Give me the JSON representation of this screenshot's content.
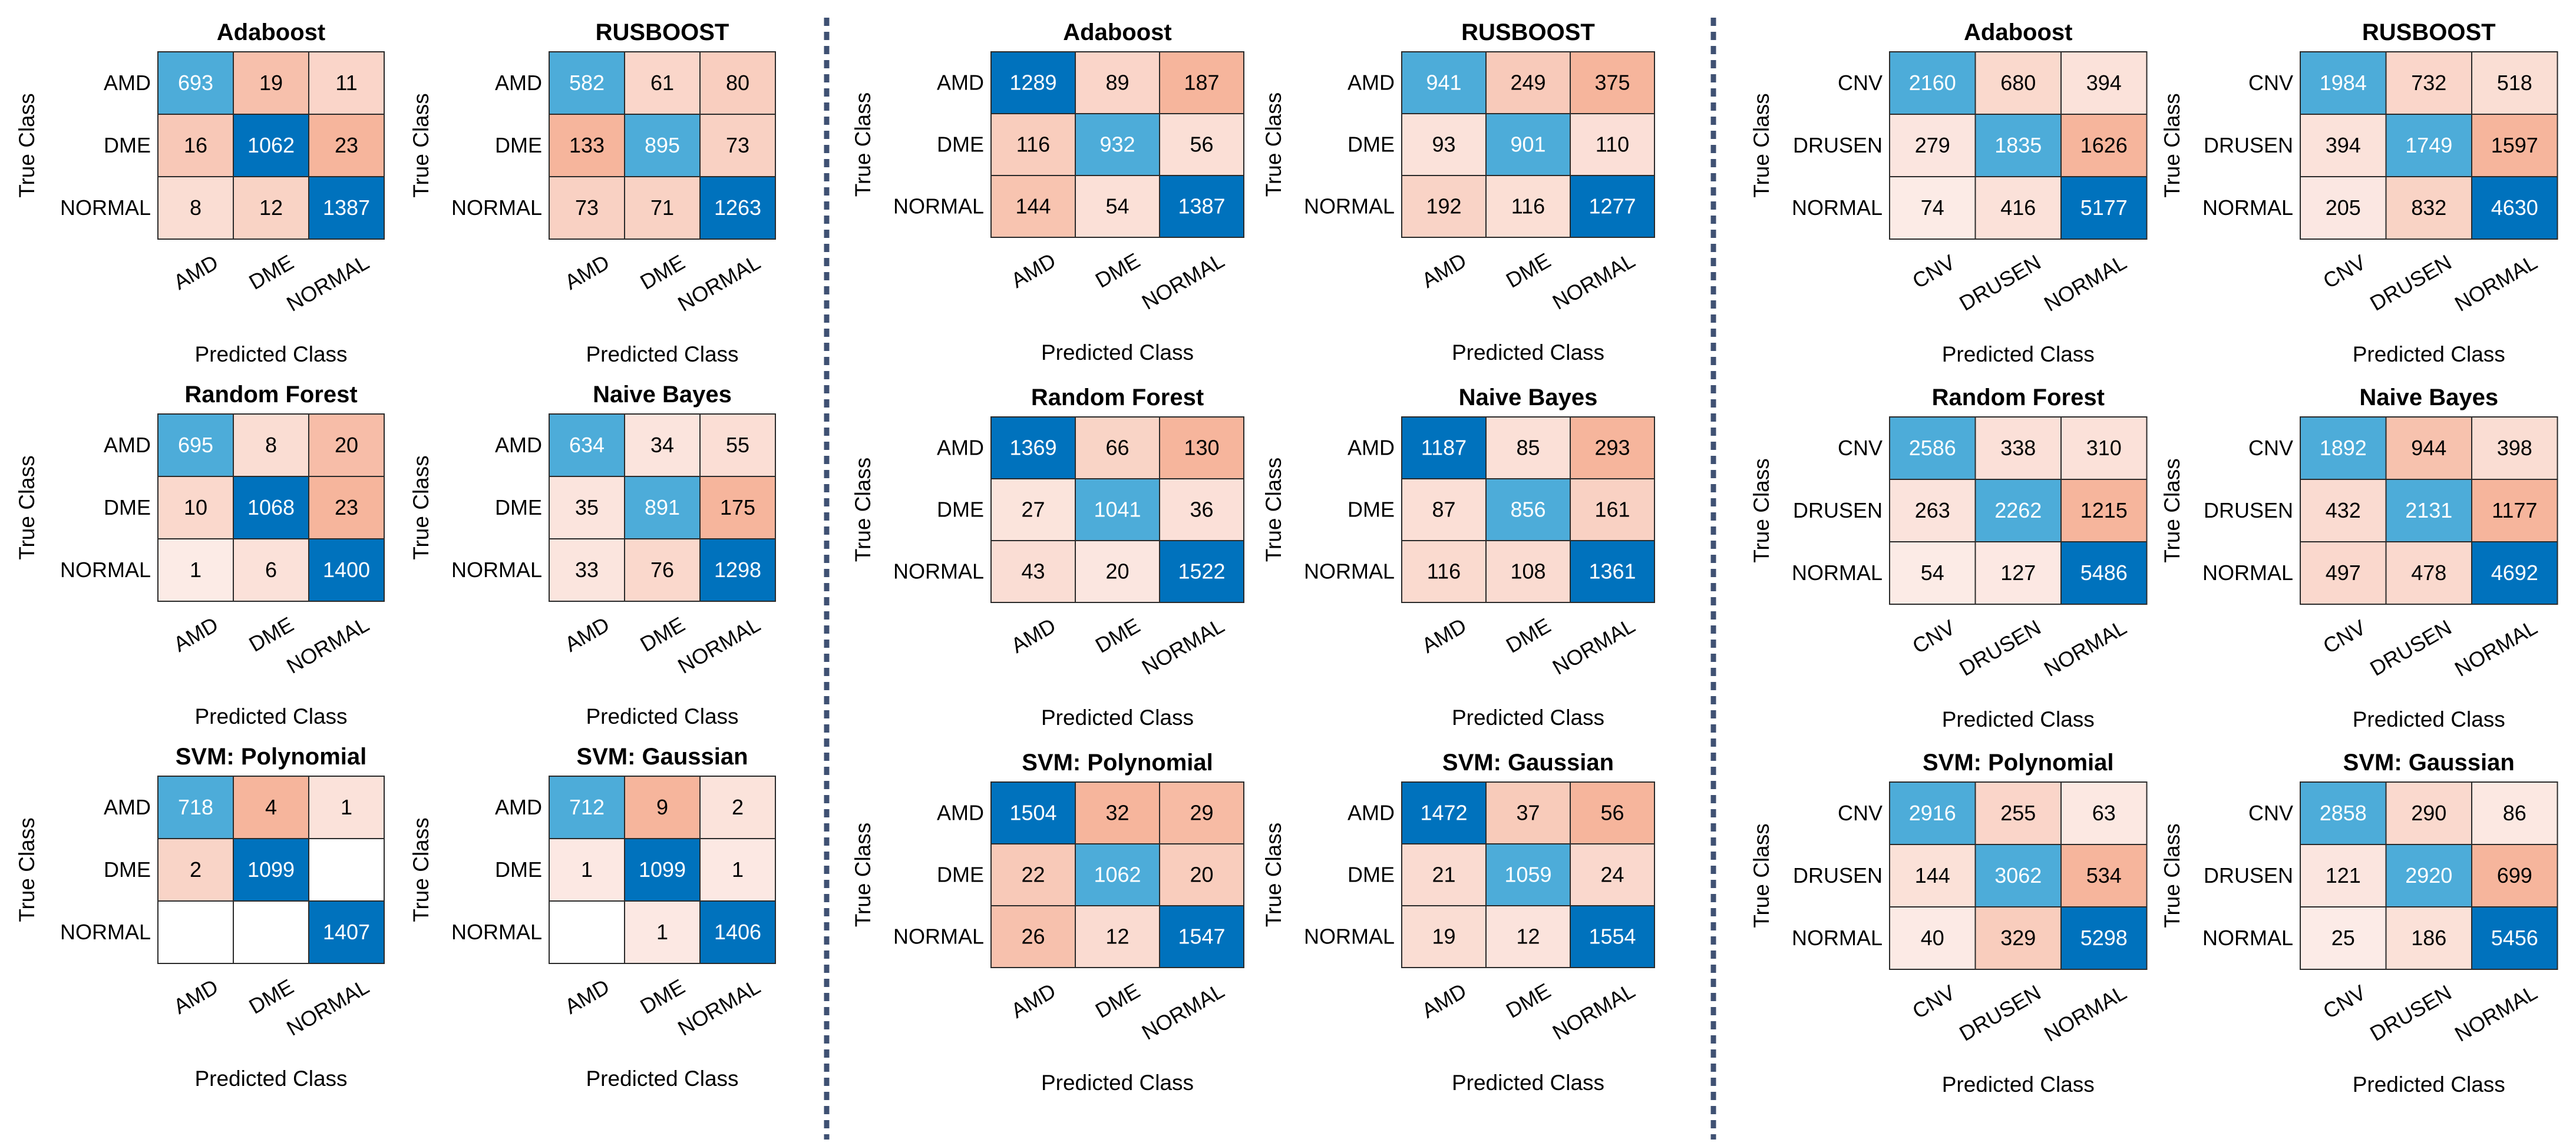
{
  "figure": {
    "xlabel": "Predicted Class",
    "ylabel": "True Class",
    "colors": {
      "diag_dark": "#0072bd",
      "diag_light": "#4dacd9",
      "off_zero": "#ffffff",
      "off_low": "#fcece8",
      "off_high": "#f6b59c",
      "grid": "#2b2b2b",
      "separator": "#3f5173"
    }
  },
  "chart_data": [
    {
      "group": 0,
      "row": 0,
      "col": 0,
      "type": "heatmap",
      "title": "Adaboost",
      "classes": [
        "AMD",
        "DME",
        "NORMAL"
      ],
      "matrix": [
        [
          693,
          19,
          11
        ],
        [
          16,
          1062,
          23
        ],
        [
          8,
          12,
          1387
        ]
      ]
    },
    {
      "group": 0,
      "row": 0,
      "col": 1,
      "type": "heatmap",
      "title": "RUSBOOST",
      "classes": [
        "AMD",
        "DME",
        "NORMAL"
      ],
      "matrix": [
        [
          582,
          61,
          80
        ],
        [
          133,
          895,
          73
        ],
        [
          73,
          71,
          1263
        ]
      ]
    },
    {
      "group": 0,
      "row": 1,
      "col": 0,
      "type": "heatmap",
      "title": "Random Forest",
      "classes": [
        "AMD",
        "DME",
        "NORMAL"
      ],
      "matrix": [
        [
          695,
          8,
          20
        ],
        [
          10,
          1068,
          23
        ],
        [
          1,
          6,
          1400
        ]
      ]
    },
    {
      "group": 0,
      "row": 1,
      "col": 1,
      "type": "heatmap",
      "title": "Naive Bayes",
      "classes": [
        "AMD",
        "DME",
        "NORMAL"
      ],
      "matrix": [
        [
          634,
          34,
          55
        ],
        [
          35,
          891,
          175
        ],
        [
          33,
          76,
          1298
        ]
      ]
    },
    {
      "group": 0,
      "row": 2,
      "col": 0,
      "type": "heatmap",
      "title": "SVM: Polynomial",
      "classes": [
        "AMD",
        "DME",
        "NORMAL"
      ],
      "matrix": [
        [
          718,
          4,
          1
        ],
        [
          2,
          1099,
          null
        ],
        [
          null,
          null,
          1407
        ]
      ]
    },
    {
      "group": 0,
      "row": 2,
      "col": 1,
      "type": "heatmap",
      "title": "SVM: Gaussian",
      "classes": [
        "AMD",
        "DME",
        "NORMAL"
      ],
      "matrix": [
        [
          712,
          9,
          2
        ],
        [
          1,
          1099,
          1
        ],
        [
          null,
          1,
          1406
        ]
      ]
    },
    {
      "group": 1,
      "row": 0,
      "col": 0,
      "type": "heatmap",
      "title": "Adaboost",
      "classes": [
        "AMD",
        "DME",
        "NORMAL"
      ],
      "matrix": [
        [
          1289,
          89,
          187
        ],
        [
          116,
          932,
          56
        ],
        [
          144,
          54,
          1387
        ]
      ]
    },
    {
      "group": 1,
      "row": 0,
      "col": 1,
      "type": "heatmap",
      "title": "RUSBOOST",
      "classes": [
        "AMD",
        "DME",
        "NORMAL"
      ],
      "matrix": [
        [
          941,
          249,
          375
        ],
        [
          93,
          901,
          110
        ],
        [
          192,
          116,
          1277
        ]
      ]
    },
    {
      "group": 1,
      "row": 1,
      "col": 0,
      "type": "heatmap",
      "title": "Random Forest",
      "classes": [
        "AMD",
        "DME",
        "NORMAL"
      ],
      "matrix": [
        [
          1369,
          66,
          130
        ],
        [
          27,
          1041,
          36
        ],
        [
          43,
          20,
          1522
        ]
      ]
    },
    {
      "group": 1,
      "row": 1,
      "col": 1,
      "type": "heatmap",
      "title": "Naive Bayes",
      "classes": [
        "AMD",
        "DME",
        "NORMAL"
      ],
      "matrix": [
        [
          1187,
          85,
          293
        ],
        [
          87,
          856,
          161
        ],
        [
          116,
          108,
          1361
        ]
      ]
    },
    {
      "group": 1,
      "row": 2,
      "col": 0,
      "type": "heatmap",
      "title": "SVM: Polynomial",
      "classes": [
        "AMD",
        "DME",
        "NORMAL"
      ],
      "matrix": [
        [
          1504,
          32,
          29
        ],
        [
          22,
          1062,
          20
        ],
        [
          26,
          12,
          1547
        ]
      ]
    },
    {
      "group": 1,
      "row": 2,
      "col": 1,
      "type": "heatmap",
      "title": "SVM: Gaussian",
      "classes": [
        "AMD",
        "DME",
        "NORMAL"
      ],
      "matrix": [
        [
          1472,
          37,
          56
        ],
        [
          21,
          1059,
          24
        ],
        [
          19,
          12,
          1554
        ]
      ]
    },
    {
      "group": 2,
      "row": 0,
      "col": 0,
      "type": "heatmap",
      "title": "Adaboost",
      "classes": [
        "CNV",
        "DRUSEN",
        "NORMAL"
      ],
      "matrix": [
        [
          2160,
          680,
          394
        ],
        [
          279,
          1835,
          1626
        ],
        [
          74,
          416,
          5177
        ]
      ]
    },
    {
      "group": 2,
      "row": 0,
      "col": 1,
      "type": "heatmap",
      "title": "RUSBOOST",
      "classes": [
        "CNV",
        "DRUSEN",
        "NORMAL"
      ],
      "matrix": [
        [
          1984,
          732,
          518
        ],
        [
          394,
          1749,
          1597
        ],
        [
          205,
          832,
          4630
        ]
      ]
    },
    {
      "group": 2,
      "row": 1,
      "col": 0,
      "type": "heatmap",
      "title": "Random Forest",
      "classes": [
        "CNV",
        "DRUSEN",
        "NORMAL"
      ],
      "matrix": [
        [
          2586,
          338,
          310
        ],
        [
          263,
          2262,
          1215
        ],
        [
          54,
          127,
          5486
        ]
      ]
    },
    {
      "group": 2,
      "row": 1,
      "col": 1,
      "type": "heatmap",
      "title": "Naive Bayes",
      "classes": [
        "CNV",
        "DRUSEN",
        "NORMAL"
      ],
      "matrix": [
        [
          1892,
          944,
          398
        ],
        [
          432,
          2131,
          1177
        ],
        [
          497,
          478,
          4692
        ]
      ]
    },
    {
      "group": 2,
      "row": 2,
      "col": 0,
      "type": "heatmap",
      "title": "SVM: Polynomial",
      "classes": [
        "CNV",
        "DRUSEN",
        "NORMAL"
      ],
      "matrix": [
        [
          2916,
          255,
          63
        ],
        [
          144,
          3062,
          534
        ],
        [
          40,
          329,
          5298
        ]
      ]
    },
    {
      "group": 2,
      "row": 2,
      "col": 1,
      "type": "heatmap",
      "title": "SVM: Gaussian",
      "classes": [
        "CNV",
        "DRUSEN",
        "NORMAL"
      ],
      "matrix": [
        [
          2858,
          290,
          86
        ],
        [
          121,
          2920,
          699
        ],
        [
          25,
          186,
          5456
        ]
      ]
    }
  ]
}
